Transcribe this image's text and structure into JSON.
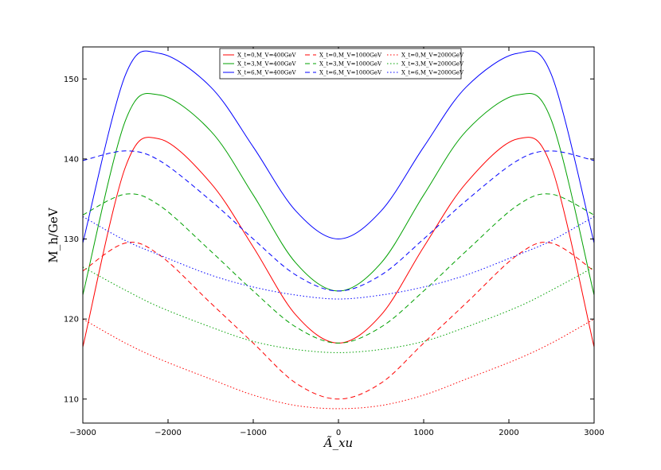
{
  "chart_data": {
    "type": "line",
    "title": "",
    "xlabel": "Ã_xu",
    "ylabel": "M_h/GeV",
    "xlim": [
      -3000,
      3000
    ],
    "ylim": [
      107,
      154
    ],
    "xticks": [
      -3000,
      -2000,
      -1000,
      0,
      1000,
      2000,
      3000
    ],
    "xtick_labels": [
      "−3000",
      "−2000",
      "−1000",
      "0",
      "1000",
      "2000",
      "3000"
    ],
    "yticks": [
      110,
      120,
      130,
      140,
      150
    ],
    "ytick_labels": [
      "110",
      "120",
      "130",
      "140",
      "150"
    ],
    "grid": false,
    "legend_position": "top-center",
    "x": [
      -3000,
      -2500,
      -2100,
      -1500,
      -1000,
      -500,
      0,
      500,
      1000,
      1500,
      2100,
      2500,
      3000
    ],
    "series": [
      {
        "name": "X_t=0,M_V=400GeV",
        "color": "#ff0000",
        "dash": "solid",
        "values": [
          116.5,
          139.0,
          142.5,
          137.0,
          129.0,
          120.5,
          117.0,
          120.5,
          129.0,
          137.0,
          142.5,
          139.0,
          116.5
        ]
      },
      {
        "name": "X_t=3,M_V=400GeV",
        "color": "#00a000",
        "dash": "solid",
        "values": [
          123.0,
          144.8,
          148.0,
          143.5,
          135.5,
          127.0,
          123.5,
          127.0,
          135.5,
          143.5,
          148.0,
          144.8,
          123.0
        ]
      },
      {
        "name": "X_t=6,M_V=400GeV",
        "color": "#0000ff",
        "dash": "solid",
        "values": [
          129.5,
          150.5,
          153.2,
          149.0,
          141.5,
          133.5,
          130.0,
          133.5,
          141.5,
          149.0,
          153.2,
          150.5,
          129.5
        ]
      },
      {
        "name": "X_t=0,M_V=1000GeV",
        "color": "#ff0000",
        "dash": "dashed",
        "values": [
          126.0,
          129.5,
          128.0,
          122.0,
          117.0,
          112.0,
          110.0,
          112.0,
          117.0,
          122.0,
          128.0,
          129.5,
          126.0
        ]
      },
      {
        "name": "X_t=3,M_V=1000GeV",
        "color": "#00a000",
        "dash": "dashed",
        "values": [
          133.0,
          135.6,
          134.2,
          128.5,
          123.5,
          119.0,
          117.0,
          119.0,
          123.5,
          128.5,
          134.2,
          135.6,
          133.0
        ]
      },
      {
        "name": "X_t=6,M_V=1000GeV",
        "color": "#0000ff",
        "dash": "dashed",
        "values": [
          139.8,
          141.0,
          139.8,
          134.8,
          130.0,
          125.5,
          123.5,
          125.5,
          130.0,
          134.8,
          139.8,
          141.0,
          139.8
        ]
      },
      {
        "name": "X_t=0,M_V=2000GeV",
        "color": "#ff0000",
        "dash": "dotted",
        "values": [
          120.0,
          117.0,
          115.0,
          112.5,
          110.5,
          109.2,
          108.8,
          109.2,
          110.5,
          112.5,
          115.0,
          117.0,
          120.0
        ]
      },
      {
        "name": "X_t=3,M_V=2000GeV",
        "color": "#00a000",
        "dash": "dotted",
        "values": [
          126.5,
          123.6,
          121.5,
          119.0,
          117.2,
          116.2,
          115.8,
          116.2,
          117.2,
          119.0,
          121.5,
          123.6,
          126.5
        ]
      },
      {
        "name": "X_t=6,M_V=2000GeV",
        "color": "#0000ff",
        "dash": "dotted",
        "values": [
          132.8,
          129.8,
          128.0,
          125.5,
          124.0,
          123.0,
          122.5,
          123.0,
          124.0,
          125.5,
          128.0,
          129.8,
          132.8
        ]
      }
    ]
  }
}
